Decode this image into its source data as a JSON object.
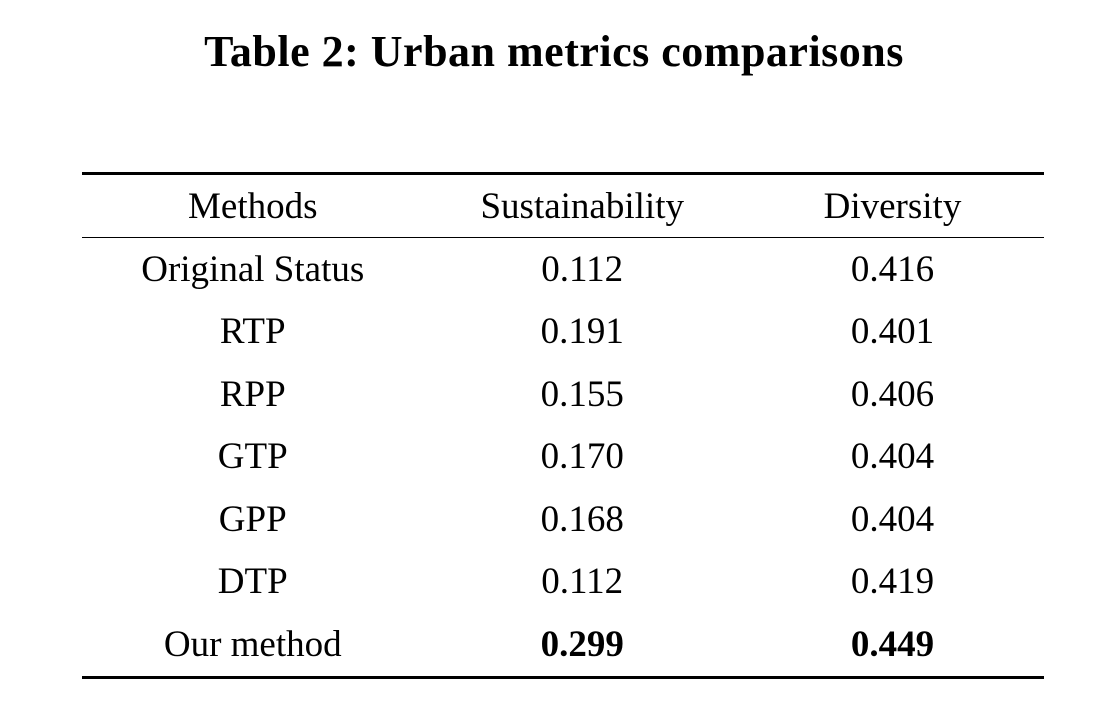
{
  "title": "Table 2: Urban metrics comparisons",
  "table": {
    "columns": [
      "Methods",
      "Sustainability",
      "Diversity"
    ],
    "rows": [
      {
        "method": "Original Status",
        "sustainability": "0.112",
        "diversity": "0.416",
        "bold_values": false
      },
      {
        "method": "RTP",
        "sustainability": "0.191",
        "diversity": "0.401",
        "bold_values": false
      },
      {
        "method": "RPP",
        "sustainability": "0.155",
        "diversity": "0.406",
        "bold_values": false
      },
      {
        "method": "GTP",
        "sustainability": "0.170",
        "diversity": "0.404",
        "bold_values": false
      },
      {
        "method": "GPP",
        "sustainability": "0.168",
        "diversity": "0.404",
        "bold_values": false
      },
      {
        "method": "DTP",
        "sustainability": "0.112",
        "diversity": "0.419",
        "bold_values": false
      },
      {
        "method": "Our method",
        "sustainability": "0.299",
        "diversity": "0.449",
        "bold_values": true
      }
    ]
  },
  "colors": {
    "text": "#000000",
    "background": "#ffffff",
    "rule": "#000000"
  }
}
